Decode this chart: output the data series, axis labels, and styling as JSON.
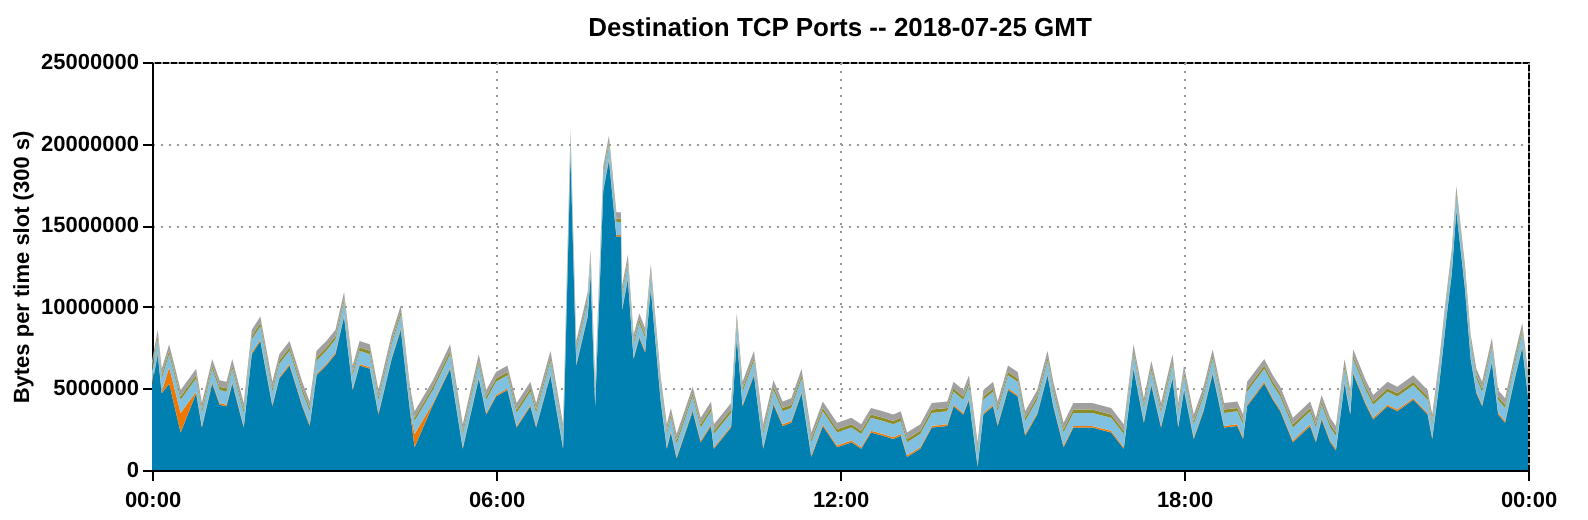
{
  "chart_data": {
    "type": "area",
    "stacked": true,
    "title": "Destination TCP Ports -- 2018-07-25 GMT",
    "ylabel": "Bytes per time slot (300 s)",
    "x": [
      0,
      0.1,
      0.17,
      0.3,
      0.5,
      0.77,
      0.87,
      1.05,
      1.18,
      1.3,
      1.4,
      1.6,
      1.74,
      1.89,
      2.1,
      2.22,
      2.4,
      2.62,
      2.75,
      2.87,
      3.04,
      3.2,
      3.35,
      3.5,
      3.62,
      3.8,
      3.95,
      4.18,
      4.34,
      4.5,
      4.58,
      4.9,
      5.2,
      5.42,
      5.7,
      5.83,
      6.0,
      6.2,
      6.36,
      6.6,
      6.7,
      6.95,
      7.17,
      7.3,
      7.4,
      7.6,
      7.65,
      7.73,
      7.83,
      7.87,
      7.97,
      8.1,
      8.18,
      8.2,
      8.3,
      8.4,
      8.5,
      8.6,
      8.7,
      8.87,
      8.98,
      9.05,
      9.15,
      9.43,
      9.57,
      9.75,
      9.8,
      10.1,
      10.2,
      10.3,
      10.5,
      10.66,
      10.84,
      11.0,
      11.15,
      11.33,
      11.5,
      11.7,
      11.95,
      12.2,
      12.37,
      12.54,
      12.75,
      12.93,
      13.06,
      13.17,
      13.4,
      13.6,
      13.87,
      13.98,
      14.15,
      14.25,
      14.4,
      14.5,
      14.67,
      14.75,
      14.93,
      15.1,
      15.23,
      15.44,
      15.62,
      15.72,
      15.9,
      16.07,
      16.4,
      16.73,
      16.95,
      17.12,
      17.3,
      17.43,
      17.6,
      17.8,
      17.9,
      18.0,
      18.17,
      18.34,
      18.5,
      18.7,
      18.93,
      19.03,
      19.1,
      19.4,
      19.55,
      19.68,
      19.9,
      20.2,
      20.3,
      20.4,
      20.55,
      20.65,
      20.8,
      20.9,
      20.95,
      21.17,
      21.3,
      21.55,
      21.72,
      22.0,
      22.25,
      22.33,
      22.45,
      22.57,
      22.67,
      22.75,
      22.9,
      23.0,
      23.1,
      23.2,
      23.37,
      23.48,
      23.6,
      23.77,
      23.9,
      24.0
    ],
    "series": [
      {
        "color": "#0080b0",
        "values": [
          5200000.0,
          7100000.0,
          4700000.0,
          5300000.0,
          2300000.0,
          4700000.0,
          2600000.0,
          5300000.0,
          4000000.0,
          3900000.0,
          5300000.0,
          2600000.0,
          7100000.0,
          7900000.0,
          3900000.0,
          5600000.0,
          6400000.0,
          3900000.0,
          2700000.0,
          5800000.0,
          6400000.0,
          7100000.0,
          9400000.0,
          4900000.0,
          6400000.0,
          6200000.0,
          3400000.0,
          6800000.0,
          8600000.0,
          3600000.0,
          1400000.0,
          4000000.0,
          6200000.0,
          1300000.0,
          5600000.0,
          3400000.0,
          4500000.0,
          4900000.0,
          2600000.0,
          3900000.0,
          2600000.0,
          5800000.0,
          1300000.0,
          19400000.0,
          6400000.0,
          9400000.0,
          12000000.0,
          3900000.0,
          13200000.0,
          17100000.0,
          19000000.0,
          14300000.0,
          14300000.0,
          9800000.0,
          11700000.0,
          6800000.0,
          8100000.0,
          7200000.0,
          11100000.0,
          4300000.0,
          1300000.0,
          2300000.0,
          700000.0,
          3600000.0,
          1700000.0,
          2700000.0,
          1300000.0,
          2600000.0,
          8100000.0,
          3900000.0,
          5800000.0,
          1300000.0,
          4000000.0,
          2700000.0,
          2900000.0,
          4700000.0,
          800000.0,
          2700000.0,
          1400000.0,
          1700000.0,
          1300000.0,
          2300000.0,
          2100000.0,
          1900000.0,
          2100000.0,
          800000.0,
          1300000.0,
          2600000.0,
          2700000.0,
          3900000.0,
          3400000.0,
          4300000.0,
          200000.0,
          3400000.0,
          3900000.0,
          2700000.0,
          4900000.0,
          4500000.0,
          2100000.0,
          3400000.0,
          5800000.0,
          3900000.0,
          1400000.0,
          2600000.0,
          2600000.0,
          2300000.0,
          1300000.0,
          6200000.0,
          2900000.0,
          5200000.0,
          2600000.0,
          5600000.0,
          2600000.0,
          4900000.0,
          1900000.0,
          3600000.0,
          5900000.0,
          2600000.0,
          2700000.0,
          1900000.0,
          3900000.0,
          5300000.0,
          4300000.0,
          3600000.0,
          1700000.0,
          2700000.0,
          1700000.0,
          3100000.0,
          1700000.0,
          1200000.0,
          5300000.0,
          3400000.0,
          5900000.0,
          4000000.0,
          3100000.0,
          3900000.0,
          3600000.0,
          4300000.0,
          3400000.0,
          1900000.0,
          5200000.0,
          9100000.0,
          12000000.0,
          15900000.0,
          11100000.0,
          6800000.0,
          4700000.0,
          3900000.0,
          6600000.0,
          3400000.0,
          2900000.0,
          5600000.0,
          7500000.0,
          4500000.0
        ]
      },
      {
        "color": "#f07800",
        "values": [
          100000.0,
          100000.0,
          100000.0,
          1000000.0,
          1200000.0,
          100000.0,
          100000.0,
          100000.0,
          100000.0,
          100000.0,
          100000.0,
          100000.0,
          100000.0,
          100000.0,
          100000.0,
          100000.0,
          100000.0,
          100000.0,
          100000.0,
          100000.0,
          100000.0,
          100000.0,
          100000.0,
          100000.0,
          100000.0,
          100000.0,
          100000.0,
          100000.0,
          100000.0,
          100000.0,
          800000.0,
          100000.0,
          100000.0,
          100000.0,
          100000.0,
          100000.0,
          100000.0,
          100000.0,
          100000.0,
          100000.0,
          100000.0,
          100000.0,
          100000.0,
          100000.0,
          100000.0,
          100000.0,
          100000.0,
          100000.0,
          100000.0,
          100000.0,
          100000.0,
          100000.0,
          100000.0,
          100000.0,
          100000.0,
          100000.0,
          100000.0,
          100000.0,
          100000.0,
          100000.0,
          100000.0,
          100000.0,
          100000.0,
          100000.0,
          100000.0,
          100000.0,
          100000.0,
          100000.0,
          100000.0,
          100000.0,
          100000.0,
          100000.0,
          100000.0,
          100000.0,
          100000.0,
          100000.0,
          100000.0,
          100000.0,
          100000.0,
          100000.0,
          100000.0,
          100000.0,
          100000.0,
          100000.0,
          100000.0,
          100000.0,
          100000.0,
          100000.0,
          100000.0,
          100000.0,
          100000.0,
          100000.0,
          100000.0,
          100000.0,
          100000.0,
          100000.0,
          100000.0,
          100000.0,
          100000.0,
          100000.0,
          100000.0,
          100000.0,
          100000.0,
          100000.0,
          100000.0,
          100000.0,
          100000.0,
          100000.0,
          100000.0,
          100000.0,
          100000.0,
          100000.0,
          100000.0,
          100000.0,
          100000.0,
          100000.0,
          100000.0,
          100000.0,
          100000.0,
          100000.0,
          100000.0,
          100000.0,
          100000.0,
          100000.0,
          100000.0,
          100000.0,
          100000.0,
          100000.0,
          100000.0,
          100000.0,
          100000.0,
          100000.0,
          100000.0,
          100000.0,
          100000.0,
          100000.0,
          100000.0,
          100000.0,
          100000.0,
          100000.0,
          100000.0,
          100000.0,
          100000.0,
          100000.0,
          100000.0,
          100000.0,
          100000.0,
          100000.0,
          100000.0,
          100000.0,
          100000.0,
          100000.0,
          100000.0,
          100000.0
        ]
      },
      {
        "color": "#80c0e0",
        "values": [
          800000.0,
          800000.0,
          800000.0,
          800000.0,
          800000.0,
          800000.0,
          800000.0,
          800000.0,
          800000.0,
          800000.0,
          800000.0,
          800000.0,
          800000.0,
          800000.0,
          800000.0,
          800000.0,
          800000.0,
          800000.0,
          800000.0,
          800000.0,
          800000.0,
          800000.0,
          800000.0,
          800000.0,
          800000.0,
          800000.0,
          800000.0,
          800000.0,
          800000.0,
          800000.0,
          800000.0,
          800000.0,
          800000.0,
          800000.0,
          800000.0,
          800000.0,
          800000.0,
          800000.0,
          800000.0,
          800000.0,
          800000.0,
          800000.0,
          800000.0,
          800000.0,
          800000.0,
          800000.0,
          800000.0,
          800000.0,
          800000.0,
          800000.0,
          800000.0,
          800000.0,
          800000.0,
          800000.0,
          800000.0,
          800000.0,
          800000.0,
          800000.0,
          800000.0,
          800000.0,
          800000.0,
          800000.0,
          800000.0,
          800000.0,
          800000.0,
          800000.0,
          800000.0,
          800000.0,
          800000.0,
          800000.0,
          800000.0,
          800000.0,
          800000.0,
          800000.0,
          800000.0,
          800000.0,
          800000.0,
          800000.0,
          800000.0,
          800000.0,
          800000.0,
          800000.0,
          800000.0,
          800000.0,
          800000.0,
          800000.0,
          800000.0,
          800000.0,
          800000.0,
          800000.0,
          800000.0,
          800000.0,
          800000.0,
          800000.0,
          800000.0,
          800000.0,
          800000.0,
          800000.0,
          800000.0,
          800000.0,
          800000.0,
          800000.0,
          800000.0,
          800000.0,
          800000.0,
          800000.0,
          800000.0,
          800000.0,
          800000.0,
          800000.0,
          800000.0,
          800000.0,
          800000.0,
          800000.0,
          800000.0,
          800000.0,
          800000.0,
          800000.0,
          800000.0,
          800000.0,
          800000.0,
          800000.0,
          800000.0,
          800000.0,
          800000.0,
          800000.0,
          800000.0,
          800000.0,
          800000.0,
          800000.0,
          800000.0,
          800000.0,
          800000.0,
          800000.0,
          800000.0,
          800000.0,
          800000.0,
          800000.0,
          800000.0,
          800000.0,
          800000.0,
          800000.0,
          800000.0,
          800000.0,
          800000.0,
          800000.0,
          800000.0,
          800000.0,
          800000.0,
          800000.0,
          800000.0,
          800000.0,
          800000.0,
          800000.0
        ]
      },
      {
        "color": "#8c8c28",
        "values": [
          200000.0,
          200000.0,
          200000.0,
          200000.0,
          200000.0,
          200000.0,
          200000.0,
          200000.0,
          200000.0,
          200000.0,
          200000.0,
          200000.0,
          200000.0,
          200000.0,
          200000.0,
          200000.0,
          200000.0,
          200000.0,
          200000.0,
          200000.0,
          200000.0,
          200000.0,
          200000.0,
          200000.0,
          200000.0,
          200000.0,
          200000.0,
          200000.0,
          200000.0,
          200000.0,
          200000.0,
          200000.0,
          200000.0,
          200000.0,
          200000.0,
          200000.0,
          200000.0,
          200000.0,
          200000.0,
          200000.0,
          200000.0,
          200000.0,
          200000.0,
          200000.0,
          200000.0,
          200000.0,
          200000.0,
          200000.0,
          200000.0,
          200000.0,
          200000.0,
          200000.0,
          200000.0,
          200000.0,
          200000.0,
          200000.0,
          200000.0,
          200000.0,
          200000.0,
          200000.0,
          200000.0,
          200000.0,
          200000.0,
          200000.0,
          200000.0,
          200000.0,
          200000.0,
          200000.0,
          200000.0,
          200000.0,
          200000.0,
          200000.0,
          200000.0,
          200000.0,
          200000.0,
          200000.0,
          200000.0,
          200000.0,
          200000.0,
          200000.0,
          200000.0,
          200000.0,
          200000.0,
          200000.0,
          200000.0,
          200000.0,
          200000.0,
          200000.0,
          200000.0,
          200000.0,
          200000.0,
          200000.0,
          200000.0,
          200000.0,
          200000.0,
          200000.0,
          200000.0,
          200000.0,
          200000.0,
          200000.0,
          200000.0,
          200000.0,
          200000.0,
          200000.0,
          200000.0,
          200000.0,
          200000.0,
          200000.0,
          200000.0,
          200000.0,
          200000.0,
          200000.0,
          200000.0,
          200000.0,
          200000.0,
          200000.0,
          200000.0,
          200000.0,
          200000.0,
          200000.0,
          200000.0,
          200000.0,
          200000.0,
          200000.0,
          200000.0,
          200000.0,
          200000.0,
          200000.0,
          200000.0,
          200000.0,
          200000.0,
          200000.0,
          200000.0,
          200000.0,
          200000.0,
          200000.0,
          200000.0,
          200000.0,
          200000.0,
          200000.0,
          200000.0,
          200000.0,
          200000.0,
          200000.0,
          200000.0,
          200000.0,
          200000.0,
          200000.0,
          200000.0,
          200000.0,
          200000.0,
          200000.0,
          200000.0,
          200000.0
        ]
      },
      {
        "color": "#a0a0a0",
        "values": [
          400000.0,
          400000.0,
          400000.0,
          400000.0,
          400000.0,
          400000.0,
          400000.0,
          400000.0,
          400000.0,
          400000.0,
          400000.0,
          400000.0,
          400000.0,
          400000.0,
          400000.0,
          400000.0,
          400000.0,
          400000.0,
          400000.0,
          400000.0,
          400000.0,
          400000.0,
          400000.0,
          400000.0,
          400000.0,
          400000.0,
          400000.0,
          400000.0,
          400000.0,
          400000.0,
          400000.0,
          400000.0,
          400000.0,
          400000.0,
          400000.0,
          400000.0,
          400000.0,
          400000.0,
          400000.0,
          400000.0,
          400000.0,
          400000.0,
          400000.0,
          400000.0,
          400000.0,
          400000.0,
          400000.0,
          400000.0,
          400000.0,
          400000.0,
          400000.0,
          400000.0,
          400000.0,
          400000.0,
          400000.0,
          400000.0,
          400000.0,
          400000.0,
          400000.0,
          400000.0,
          400000.0,
          400000.0,
          400000.0,
          400000.0,
          400000.0,
          400000.0,
          400000.0,
          400000.0,
          400000.0,
          400000.0,
          400000.0,
          400000.0,
          400000.0,
          400000.0,
          400000.0,
          400000.0,
          400000.0,
          400000.0,
          400000.0,
          400000.0,
          400000.0,
          400000.0,
          400000.0,
          400000.0,
          400000.0,
          400000.0,
          400000.0,
          400000.0,
          400000.0,
          400000.0,
          400000.0,
          400000.0,
          400000.0,
          400000.0,
          400000.0,
          400000.0,
          400000.0,
          400000.0,
          400000.0,
          400000.0,
          400000.0,
          400000.0,
          400000.0,
          400000.0,
          400000.0,
          400000.0,
          400000.0,
          400000.0,
          400000.0,
          400000.0,
          400000.0,
          400000.0,
          400000.0,
          400000.0,
          400000.0,
          400000.0,
          400000.0,
          400000.0,
          400000.0,
          400000.0,
          400000.0,
          400000.0,
          400000.0,
          400000.0,
          400000.0,
          400000.0,
          400000.0,
          400000.0,
          400000.0,
          400000.0,
          400000.0,
          400000.0,
          400000.0,
          400000.0,
          400000.0,
          400000.0,
          400000.0,
          400000.0,
          400000.0,
          400000.0,
          400000.0,
          400000.0,
          400000.0,
          400000.0,
          400000.0,
          400000.0,
          400000.0,
          400000.0,
          400000.0,
          400000.0,
          400000.0,
          400000.0,
          400000.0,
          400000.0
        ]
      }
    ],
    "xlim": [
      0,
      24
    ],
    "xticks": [
      {
        "value": 0,
        "label": "00:00"
      },
      {
        "value": 6,
        "label": "06:00"
      },
      {
        "value": 12,
        "label": "12:00"
      },
      {
        "value": 18,
        "label": "18:00"
      },
      {
        "value": 24,
        "label": "00:00"
      }
    ],
    "ylim": [
      0,
      25000000
    ],
    "yticks": [
      0,
      5000000,
      10000000,
      15000000,
      20000000,
      25000000
    ],
    "grid": true,
    "legend": false
  }
}
